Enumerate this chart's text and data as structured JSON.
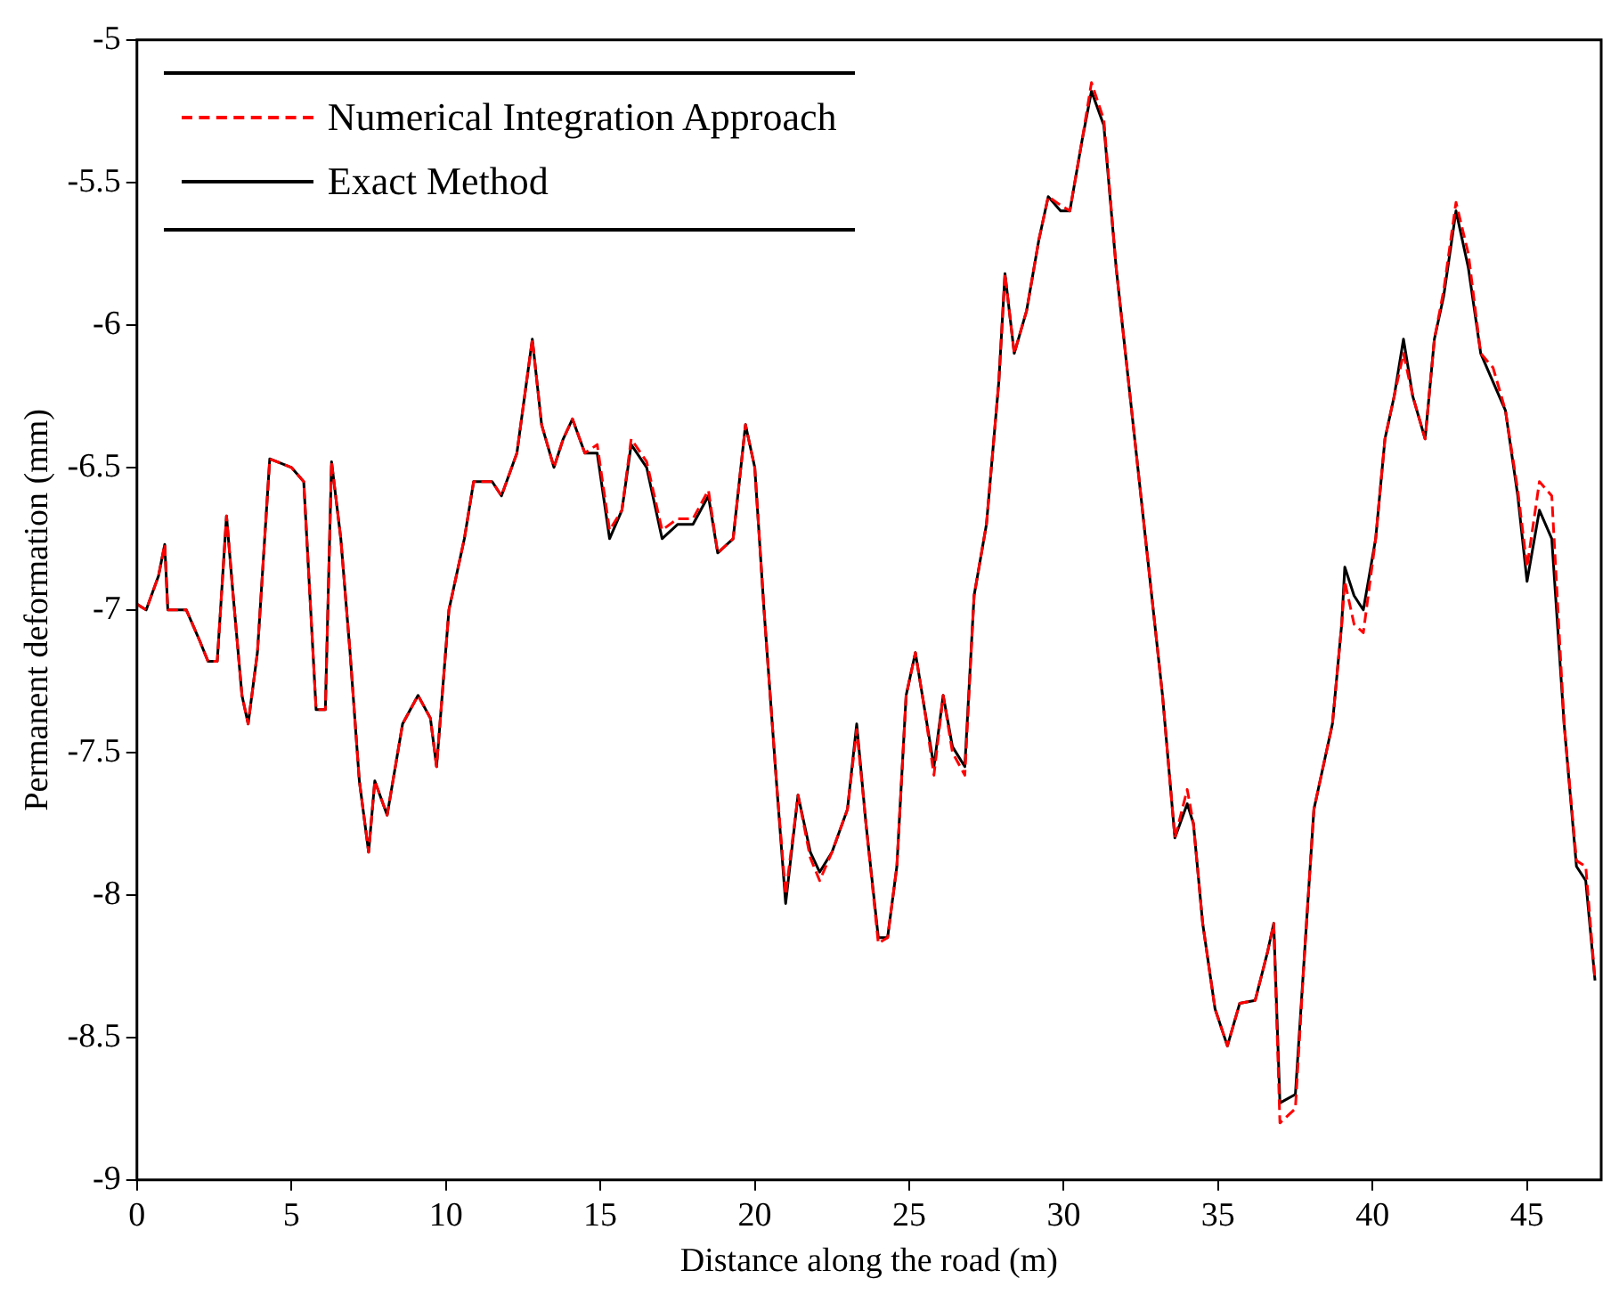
{
  "chart_data": {
    "type": "line",
    "xlabel": "Distance along the road (m)",
    "ylabel": "Permanent deformation (mm)",
    "x": [
      0,
      0.3,
      0.7,
      0.9,
      1.0,
      1.6,
      2.0,
      2.3,
      2.6,
      2.9,
      3.1,
      3.4,
      3.6,
      3.9,
      4.3,
      5.0,
      5.4,
      5.8,
      6.1,
      6.3,
      6.6,
      6.9,
      7.2,
      7.5,
      7.7,
      8.1,
      8.6,
      9.1,
      9.5,
      9.7,
      10.1,
      10.6,
      10.9,
      11.5,
      11.8,
      12.3,
      12.8,
      13.1,
      13.5,
      13.8,
      14.1,
      14.5,
      14.9,
      15.3,
      15.7,
      16.0,
      16.5,
      17.0,
      17.5,
      18.0,
      18.5,
      18.8,
      19.3,
      19.7,
      20.0,
      20.3,
      20.7,
      21.0,
      21.4,
      21.8,
      22.1,
      22.5,
      23.0,
      23.3,
      23.6,
      24.0,
      24.3,
      24.6,
      24.9,
      25.2,
      25.5,
      25.8,
      26.1,
      26.4,
      26.8,
      27.1,
      27.5,
      27.9,
      28.1,
      28.4,
      28.8,
      29.2,
      29.5,
      29.9,
      30.2,
      30.6,
      30.9,
      31.3,
      31.7,
      32.2,
      32.7,
      33.2,
      33.6,
      34.0,
      34.2,
      34.5,
      34.9,
      35.3,
      35.7,
      36.2,
      36.6,
      36.8,
      37.0,
      37.5,
      37.8,
      38.1,
      38.4,
      38.7,
      39.0,
      39.1,
      39.4,
      39.7,
      40.1,
      40.4,
      40.7,
      41.0,
      41.3,
      41.7,
      42.0,
      42.3,
      42.7,
      43.1,
      43.5,
      43.9,
      44.3,
      44.7,
      45.0,
      45.4,
      45.8,
      46.2,
      46.6,
      46.9,
      47.2
    ],
    "series": [
      {
        "name": "Numerical Integration Approach",
        "color": "#ff0000",
        "line_style": "dashed",
        "values": [
          -6.98,
          -7.0,
          -6.88,
          -6.77,
          -7.0,
          -7.0,
          -7.1,
          -7.18,
          -7.18,
          -6.67,
          -6.93,
          -7.3,
          -7.4,
          -7.15,
          -6.47,
          -6.5,
          -6.55,
          -7.35,
          -7.35,
          -6.48,
          -6.75,
          -7.15,
          -7.6,
          -7.85,
          -7.6,
          -7.72,
          -7.4,
          -7.3,
          -7.38,
          -7.55,
          -7.0,
          -6.75,
          -6.55,
          -6.55,
          -6.6,
          -6.45,
          -6.05,
          -6.35,
          -6.5,
          -6.4,
          -6.33,
          -6.45,
          -6.42,
          -6.72,
          -6.65,
          -6.4,
          -6.48,
          -6.72,
          -6.68,
          -6.68,
          -6.58,
          -6.8,
          -6.75,
          -6.35,
          -6.5,
          -7.0,
          -7.6,
          -8.0,
          -7.65,
          -7.87,
          -7.95,
          -7.85,
          -7.7,
          -7.42,
          -7.75,
          -8.17,
          -8.15,
          -7.9,
          -7.3,
          -7.15,
          -7.35,
          -7.58,
          -7.3,
          -7.5,
          -7.58,
          -6.95,
          -6.7,
          -6.2,
          -5.82,
          -6.1,
          -5.95,
          -5.7,
          -5.55,
          -5.58,
          -5.6,
          -5.35,
          -5.15,
          -5.28,
          -5.8,
          -6.3,
          -6.8,
          -7.3,
          -7.8,
          -7.63,
          -7.75,
          -8.1,
          -8.4,
          -8.53,
          -8.38,
          -8.37,
          -8.2,
          -8.1,
          -8.8,
          -8.75,
          -8.2,
          -7.7,
          -7.55,
          -7.4,
          -7.05,
          -6.9,
          -7.05,
          -7.08,
          -6.75,
          -6.4,
          -6.25,
          -6.1,
          -6.25,
          -6.4,
          -6.05,
          -5.88,
          -5.57,
          -5.75,
          -6.1,
          -6.15,
          -6.3,
          -6.58,
          -6.85,
          -6.55,
          -6.6,
          -7.4,
          -7.88,
          -7.9,
          -8.3
        ]
      },
      {
        "name": "Exact Method",
        "color": "#000000",
        "line_style": "solid",
        "values": [
          -6.98,
          -7.0,
          -6.88,
          -6.77,
          -7.0,
          -7.0,
          -7.1,
          -7.18,
          -7.18,
          -6.67,
          -6.93,
          -7.3,
          -7.4,
          -7.15,
          -6.47,
          -6.5,
          -6.55,
          -7.35,
          -7.35,
          -6.48,
          -6.75,
          -7.15,
          -7.6,
          -7.85,
          -7.6,
          -7.72,
          -7.4,
          -7.3,
          -7.38,
          -7.55,
          -7.0,
          -6.75,
          -6.55,
          -6.55,
          -6.6,
          -6.45,
          -6.05,
          -6.35,
          -6.5,
          -6.4,
          -6.33,
          -6.45,
          -6.45,
          -6.75,
          -6.65,
          -6.42,
          -6.5,
          -6.75,
          -6.7,
          -6.7,
          -6.6,
          -6.8,
          -6.75,
          -6.35,
          -6.5,
          -7.0,
          -7.6,
          -8.03,
          -7.65,
          -7.85,
          -7.92,
          -7.85,
          -7.7,
          -7.4,
          -7.75,
          -8.15,
          -8.15,
          -7.9,
          -7.3,
          -7.15,
          -7.35,
          -7.55,
          -7.3,
          -7.48,
          -7.55,
          -6.95,
          -6.7,
          -6.2,
          -5.82,
          -6.1,
          -5.95,
          -5.7,
          -5.55,
          -5.6,
          -5.6,
          -5.35,
          -5.18,
          -5.3,
          -5.8,
          -6.3,
          -6.8,
          -7.3,
          -7.8,
          -7.68,
          -7.75,
          -8.1,
          -8.4,
          -8.53,
          -8.38,
          -8.37,
          -8.2,
          -8.1,
          -8.73,
          -8.7,
          -8.2,
          -7.7,
          -7.55,
          -7.4,
          -7.05,
          -6.85,
          -6.95,
          -7.0,
          -6.75,
          -6.4,
          -6.25,
          -6.05,
          -6.25,
          -6.4,
          -6.05,
          -5.9,
          -5.6,
          -5.8,
          -6.1,
          -6.2,
          -6.3,
          -6.6,
          -6.9,
          -6.65,
          -6.75,
          -7.4,
          -7.9,
          -7.95,
          -8.3
        ]
      }
    ],
    "xlim": [
      0,
      47.4
    ],
    "xticks": [
      0,
      5,
      10,
      15,
      20,
      25,
      30,
      35,
      40,
      45
    ],
    "ylim": [
      -9,
      -5
    ],
    "yticks": [
      -9,
      -8.5,
      -8,
      -7.5,
      -7,
      -6.5,
      -6,
      -5.5,
      -5
    ],
    "grid": false,
    "legend": "top left",
    "marker": "none"
  }
}
